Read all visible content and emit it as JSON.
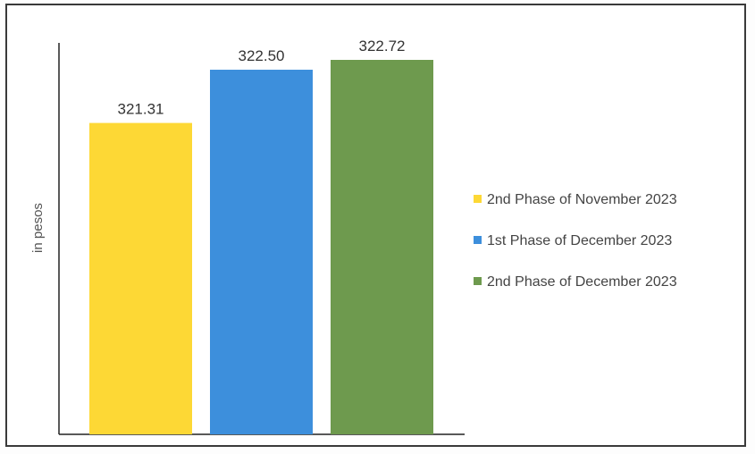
{
  "chart_data": {
    "type": "bar",
    "ylabel": "in pesos",
    "ylim": [
      0,
      322.72
    ],
    "categories": [
      "2nd Phase of November 2023",
      "1st Phase of December 2023",
      "2nd Phase of December 2023"
    ],
    "values": [
      321.31,
      322.5,
      322.72
    ],
    "value_labels": [
      "321.31",
      "322.50",
      "322.72"
    ],
    "colors": [
      "#fdd835",
      "#3d8fdc",
      "#6e9a4e"
    ],
    "legend": [
      {
        "label": "2nd Phase of November 2023",
        "color": "#fdd835"
      },
      {
        "label": "1st Phase of December 2023",
        "color": "#3d8fdc"
      },
      {
        "label": "2nd Phase of December 2023",
        "color": "#6e9a4e"
      }
    ],
    "legend_position": "right",
    "grid": false,
    "y_ticks_shown": false
  }
}
